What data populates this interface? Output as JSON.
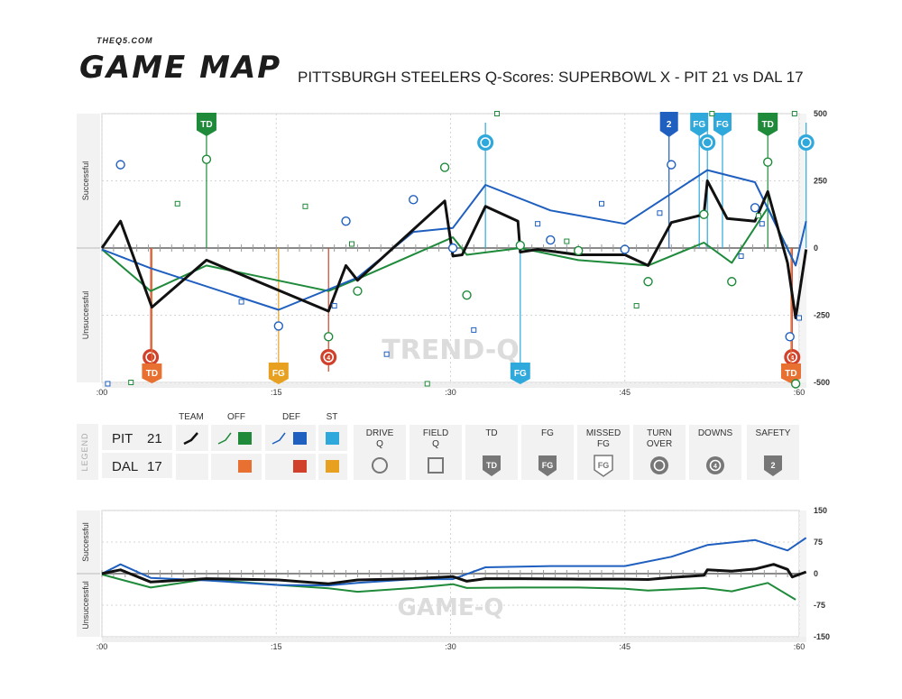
{
  "header": {
    "brand_small": "THEQ5.COM",
    "brand_title": "GAME MAP",
    "title": "PITTSBURGH STEELERS Q-Scores: SUPERBOWL X - PIT 21 vs DAL 17"
  },
  "colors": {
    "team": "#111111",
    "offense": "#1e8a3a",
    "defense": "#1f5fbf",
    "special_teams": "#2fa8dc",
    "opp_offense": "#e87030",
    "opp_defense": "#d0402a",
    "opp_special_teams": "#e8a020",
    "panel_bg": "#f2f2f2",
    "grid": "#d4d4d4"
  },
  "legend": {
    "label": "LEGEND",
    "columns": [
      "TEAM",
      "OFF",
      "DEF",
      "ST"
    ],
    "teams": [
      {
        "abbr": "PIT",
        "score": "21"
      },
      {
        "abbr": "DAL",
        "score": "17"
      }
    ],
    "items": [
      {
        "label": "DRIVE Q",
        "icon": "circle-icon"
      },
      {
        "label": "FIELD Q",
        "icon": "square-icon"
      },
      {
        "label": "TD",
        "icon": "td-shield-icon"
      },
      {
        "label": "FG",
        "icon": "fg-shield-icon"
      },
      {
        "label": "MISSED FG",
        "icon": "missed-fg-shield-icon"
      },
      {
        "label": "TURN OVER",
        "icon": "turnover-icon"
      },
      {
        "label": "DOWNS",
        "icon": "downs-icon"
      },
      {
        "label": "SAFETY",
        "icon": "safety-shield-icon"
      }
    ],
    "icon_text": {
      "td": "TD",
      "fg": "FG",
      "downs": "4",
      "safety": "2"
    }
  },
  "chart_data": [
    {
      "type": "line",
      "name": "trend-q",
      "watermark": "TREND-Q",
      "ylabel_top": "Successful",
      "ylabel_bottom": "Unsuccessful",
      "ylim": [
        -500,
        500
      ],
      "yticks": [
        500,
        250,
        0,
        -250,
        -500
      ],
      "xlim": [
        0,
        60
      ],
      "xticks": [
        ":00",
        ":15",
        ":30",
        ":45",
        ":60"
      ],
      "series": [
        {
          "role": "team",
          "points": [
            [
              0,
              0
            ],
            [
              1.6,
              100
            ],
            [
              4.3,
              -220
            ],
            [
              9,
              -45
            ],
            [
              19.5,
              -235
            ],
            [
              21,
              -65
            ],
            [
              22,
              -120
            ],
            [
              29.5,
              175
            ],
            [
              30.2,
              -30
            ],
            [
              31,
              -25
            ],
            [
              33,
              155
            ],
            [
              35.8,
              100
            ],
            [
              36,
              -15
            ],
            [
              37.5,
              -5
            ],
            [
              41,
              -25
            ],
            [
              45,
              -25
            ],
            [
              47,
              -65
            ],
            [
              49,
              95
            ],
            [
              51.8,
              125
            ],
            [
              52.1,
              250
            ],
            [
              53.8,
              110
            ],
            [
              56.2,
              100
            ],
            [
              57.3,
              210
            ],
            [
              59,
              -55
            ],
            [
              59.7,
              -260
            ],
            [
              60.6,
              -5
            ]
          ]
        },
        {
          "role": "offense",
          "points": [
            [
              0,
              -5
            ],
            [
              4.2,
              -160
            ],
            [
              9,
              -65
            ],
            [
              19.5,
              -160
            ],
            [
              22,
              -115
            ],
            [
              30.2,
              40
            ],
            [
              31.4,
              -25
            ],
            [
              36,
              0
            ],
            [
              41,
              -45
            ],
            [
              47,
              -65
            ],
            [
              51.8,
              20
            ],
            [
              54.2,
              -55
            ],
            [
              57.3,
              150
            ],
            [
              59.7,
              -65
            ]
          ]
        },
        {
          "role": "defense",
          "points": [
            [
              0,
              -5
            ],
            [
              4.2,
              -75
            ],
            [
              15.2,
              -230
            ],
            [
              22,
              -110
            ],
            [
              26.8,
              60
            ],
            [
              30.2,
              75
            ],
            [
              33,
              235
            ],
            [
              38.6,
              140
            ],
            [
              45,
              90
            ],
            [
              52.1,
              290
            ],
            [
              56.2,
              245
            ],
            [
              59.7,
              -65
            ],
            [
              60.6,
              100
            ]
          ]
        }
      ],
      "drive_q": [
        {
          "x": 1.6,
          "y": 310,
          "team": "PIT"
        },
        {
          "x": 9,
          "y": 330,
          "team": "OFF"
        },
        {
          "x": 15.2,
          "y": -290,
          "team": "DEF"
        },
        {
          "x": 19.5,
          "y": -330,
          "team": "OFF"
        },
        {
          "x": 21,
          "y": 100,
          "team": "DEF"
        },
        {
          "x": 22,
          "y": -160,
          "team": "OFF"
        },
        {
          "x": 26.8,
          "y": 180,
          "team": "DEF"
        },
        {
          "x": 29.5,
          "y": 300,
          "team": "OFF"
        },
        {
          "x": 30.2,
          "y": 0,
          "team": "DEF"
        },
        {
          "x": 31.4,
          "y": -175,
          "team": "OFF"
        },
        {
          "x": 36,
          "y": 10,
          "team": "OFF"
        },
        {
          "x": 38.6,
          "y": 30,
          "team": "DEF"
        },
        {
          "x": 41,
          "y": -10,
          "team": "OFF"
        },
        {
          "x": 45,
          "y": -5,
          "team": "DEF"
        },
        {
          "x": 47,
          "y": -125,
          "team": "OFF"
        },
        {
          "x": 49,
          "y": 310,
          "team": "DEF"
        },
        {
          "x": 51.8,
          "y": 125,
          "team": "OFF"
        },
        {
          "x": 54.2,
          "y": -125,
          "team": "OFF"
        },
        {
          "x": 56.2,
          "y": 150,
          "team": "DEF"
        },
        {
          "x": 57.3,
          "y": 320,
          "team": "OFF"
        },
        {
          "x": 59.2,
          "y": -330,
          "team": "DEF"
        },
        {
          "x": 59.7,
          "y": -505,
          "team": "OFF"
        }
      ],
      "field_q": [
        {
          "x": 0.5,
          "y": -505,
          "team": "DEF"
        },
        {
          "x": 2.5,
          "y": -500,
          "team": "OFF"
        },
        {
          "x": 6.5,
          "y": 165,
          "team": "OFF"
        },
        {
          "x": 12,
          "y": -200,
          "team": "DEF"
        },
        {
          "x": 17.5,
          "y": 155,
          "team": "OFF"
        },
        {
          "x": 20,
          "y": -215,
          "team": "DEF"
        },
        {
          "x": 21.5,
          "y": 15,
          "team": "OFF"
        },
        {
          "x": 24.5,
          "y": -395,
          "team": "DEF"
        },
        {
          "x": 28,
          "y": -505,
          "team": "OFF"
        },
        {
          "x": 32,
          "y": -305,
          "team": "DEF"
        },
        {
          "x": 34,
          "y": 500,
          "team": "OFF"
        },
        {
          "x": 37.5,
          "y": 90,
          "team": "DEF"
        },
        {
          "x": 40,
          "y": 25,
          "team": "OFF"
        },
        {
          "x": 43,
          "y": 165,
          "team": "DEF"
        },
        {
          "x": 46,
          "y": -215,
          "team": "OFF"
        },
        {
          "x": 48,
          "y": 130,
          "team": "DEF"
        },
        {
          "x": 52.5,
          "y": 500,
          "team": "OFF"
        },
        {
          "x": 55,
          "y": -30,
          "team": "DEF"
        },
        {
          "x": 56.5,
          "y": 120,
          "team": "OFF"
        },
        {
          "x": 56.8,
          "y": 90,
          "team": "DEF"
        },
        {
          "x": 59.6,
          "y": 500,
          "team": "OFF"
        },
        {
          "x": 60,
          "y": -260,
          "team": "DEF"
        }
      ],
      "events_top": [
        {
          "x": 9,
          "kind": "TD",
          "team": "OFF"
        },
        {
          "x": 33,
          "kind": "turnover",
          "team": "ST"
        },
        {
          "x": 48.8,
          "kind": "safety",
          "team": "DEF"
        },
        {
          "x": 51.4,
          "kind": "FG",
          "team": "ST"
        },
        {
          "x": 52.1,
          "kind": "turnover",
          "team": "ST"
        },
        {
          "x": 53.4,
          "kind": "FG",
          "team": "ST"
        },
        {
          "x": 57.3,
          "kind": "TD",
          "team": "OFF"
        },
        {
          "x": 60.6,
          "kind": "turnover",
          "team": "ST"
        }
      ],
      "events_bottom": [
        {
          "x": 4.2,
          "kind": "turnover",
          "team": "OPP_DEF"
        },
        {
          "x": 4.3,
          "kind": "TD",
          "team": "OPP_OFF"
        },
        {
          "x": 15.2,
          "kind": "FG",
          "team": "OPP_ST"
        },
        {
          "x": 19.5,
          "kind": "downs",
          "team": "OPP_DEF"
        },
        {
          "x": 36,
          "kind": "FG",
          "team": "ST"
        },
        {
          "x": 59.4,
          "kind": "downs",
          "team": "OPP_DEF"
        },
        {
          "x": 59.3,
          "kind": "TD",
          "team": "OPP_OFF"
        }
      ],
      "yticklabels": [
        "500",
        "250",
        "0",
        "-250",
        "-500"
      ]
    },
    {
      "type": "line",
      "name": "game-q",
      "watermark": "GAME-Q",
      "ylabel_top": "Successful",
      "ylabel_bottom": "Unsuccessful",
      "ylim": [
        -150,
        150
      ],
      "yticks": [
        150,
        75,
        0,
        -75,
        -150
      ],
      "yticklabels": [
        "150",
        "75",
        "0",
        "-75",
        "-150"
      ],
      "xlim": [
        0,
        60
      ],
      "xticks": [
        ":00",
        ":15",
        ":30",
        ":45",
        ":60"
      ],
      "series": [
        {
          "role": "team",
          "points": [
            [
              0,
              0
            ],
            [
              1.6,
              9
            ],
            [
              4.2,
              -20
            ],
            [
              9,
              -12
            ],
            [
              15.2,
              -15
            ],
            [
              19.5,
              -24
            ],
            [
              22,
              -15
            ],
            [
              26.8,
              -12
            ],
            [
              30.2,
              -7
            ],
            [
              31.4,
              -18
            ],
            [
              33,
              -12
            ],
            [
              36,
              -12
            ],
            [
              41,
              -13
            ],
            [
              45,
              -13
            ],
            [
              47,
              -14
            ],
            [
              49,
              -9
            ],
            [
              51.8,
              -4
            ],
            [
              52.1,
              9
            ],
            [
              54.2,
              6
            ],
            [
              56.2,
              11
            ],
            [
              57.8,
              22
            ],
            [
              59,
              10
            ],
            [
              59.4,
              -8
            ],
            [
              60.6,
              4
            ]
          ]
        },
        {
          "role": "offense",
          "points": [
            [
              0,
              -2
            ],
            [
              4.2,
              -33
            ],
            [
              9,
              -13
            ],
            [
              15.2,
              -27
            ],
            [
              19.5,
              -35
            ],
            [
              22,
              -43
            ],
            [
              26.8,
              -34
            ],
            [
              30.2,
              -25
            ],
            [
              31.4,
              -34
            ],
            [
              36,
              -33
            ],
            [
              41,
              -33
            ],
            [
              45,
              -36
            ],
            [
              47,
              -40
            ],
            [
              51.8,
              -34
            ],
            [
              54.2,
              -42
            ],
            [
              57.3,
              -22
            ],
            [
              59.7,
              -62
            ]
          ]
        },
        {
          "role": "defense",
          "points": [
            [
              0,
              0
            ],
            [
              1.6,
              22
            ],
            [
              4.2,
              -10
            ],
            [
              9,
              -16
            ],
            [
              15.2,
              -27
            ],
            [
              19.5,
              -28
            ],
            [
              22,
              -22
            ],
            [
              26.8,
              -13
            ],
            [
              30.2,
              -13
            ],
            [
              33,
              15
            ],
            [
              38.6,
              18
            ],
            [
              45,
              18
            ],
            [
              49,
              40
            ],
            [
              52.1,
              68
            ],
            [
              56.2,
              80
            ],
            [
              59,
              55
            ],
            [
              60.6,
              85
            ]
          ]
        }
      ]
    }
  ]
}
